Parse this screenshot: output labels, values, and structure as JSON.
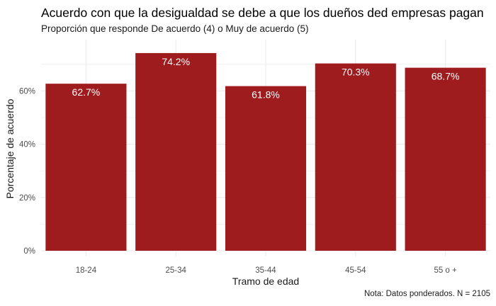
{
  "chart_data": {
    "type": "bar",
    "title": "Acuerdo con que la desigualdad se debe a que los dueños ded empresas pagan",
    "subtitle": "Proporción que responde De acuerdo (4) o Muy de acuerdo (5)",
    "xlabel": "Tramo de edad",
    "ylabel": "Porcentaje de acuerdo",
    "caption": "Nota: Datos ponderados. N = 2105",
    "categories": [
      "18-24",
      "25-34",
      "35-44",
      "45-54",
      "55 o +"
    ],
    "values": [
      62.7,
      74.2,
      61.8,
      70.3,
      68.7
    ],
    "data_labels": [
      "62.7%",
      "74.2%",
      "61.8%",
      "70.3%",
      "68.7%"
    ],
    "ylim": [
      0,
      77.9
    ],
    "yticks": [
      0,
      20,
      40,
      60
    ],
    "ytick_labels": [
      "0%",
      "20%",
      "40%",
      "60%"
    ],
    "grid": true,
    "legend": "none",
    "bar_color": "#9E1B1E",
    "grid_color": "#EBEBEB"
  }
}
